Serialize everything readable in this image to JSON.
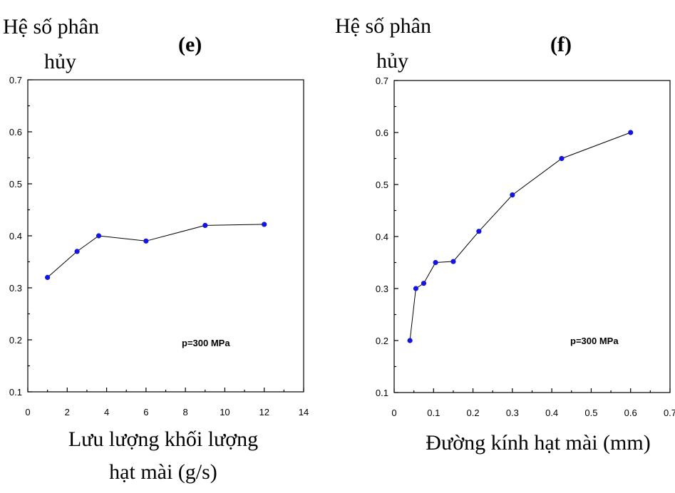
{
  "chart_data": [
    {
      "type": "line",
      "panel_label": "(e)",
      "ylabel": "Hệ số phân hủy",
      "xlabel": "Lưu lượng khối lượng hạt mài (g/s)",
      "annotation": "p=300 MPa",
      "xlim": [
        0,
        14
      ],
      "ylim": [
        0.1,
        0.7
      ],
      "xticks": [
        0,
        2,
        4,
        6,
        8,
        10,
        12,
        14
      ],
      "yticks": [
        0.1,
        0.2,
        0.3,
        0.4,
        0.5,
        0.6,
        0.7
      ],
      "x_tick_labels": [
        "0",
        "2",
        "4",
        "6",
        "8",
        "10",
        "12",
        "14"
      ],
      "y_tick_labels": [
        "0.1",
        "0.2",
        "0.3",
        "0.4",
        "0.5",
        "0.6",
        "0.7"
      ],
      "grid": false,
      "series": [
        {
          "x": [
            1,
            2.5,
            3.6,
            6,
            9,
            12
          ],
          "y": [
            0.32,
            0.37,
            0.4,
            0.39,
            0.42,
            0.422
          ]
        }
      ],
      "colors": {
        "marker": "#1515e0",
        "line": "#000000"
      }
    },
    {
      "type": "line",
      "panel_label": "(f)",
      "ylabel": "Hệ số phân hủy",
      "xlabel": "Đường kính hạt mài (mm)",
      "annotation": "p=300 MPa",
      "xlim": [
        0,
        0.7
      ],
      "ylim": [
        0.1,
        0.7
      ],
      "xticks": [
        0,
        0.1,
        0.2,
        0.3,
        0.4,
        0.5,
        0.6,
        0.7
      ],
      "yticks": [
        0.1,
        0.2,
        0.3,
        0.4,
        0.5,
        0.6,
        0.7
      ],
      "x_tick_labels": [
        "0",
        "0.1",
        "0.2",
        "0.3",
        "0.4",
        "0.5",
        "0.6",
        "0.7"
      ],
      "y_tick_labels": [
        "0.1",
        "0.2",
        "0.3",
        "0.4",
        "0.5",
        "0.6",
        "0.7"
      ],
      "grid": false,
      "series": [
        {
          "x": [
            0.04,
            0.055,
            0.075,
            0.105,
            0.15,
            0.215,
            0.3,
            0.425,
            0.6
          ],
          "y": [
            0.2,
            0.3,
            0.31,
            0.35,
            0.352,
            0.41,
            0.48,
            0.55,
            0.6
          ]
        }
      ],
      "colors": {
        "marker": "#1515e0",
        "line": "#000000"
      }
    }
  ]
}
